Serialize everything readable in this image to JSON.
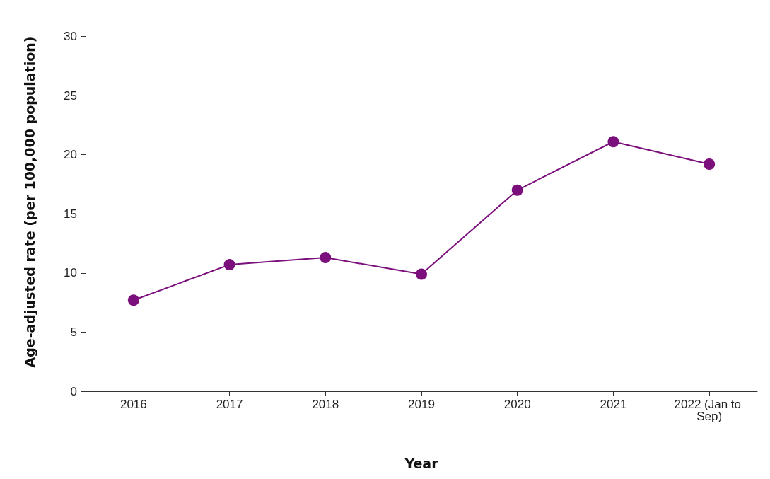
{
  "chart_data": {
    "type": "line",
    "xlabel": "Year",
    "ylabel": "Age-adjusted rate (per 100,000 population)",
    "categories": [
      "2016",
      "2017",
      "2018",
      "2019",
      "2020",
      "2021",
      "2022 (Jan to Sep)"
    ],
    "series": [
      {
        "color": "#7b0f7b",
        "values": [
          7.7,
          10.7,
          11.3,
          9.9,
          17.0,
          21.1,
          19.2
        ]
      }
    ],
    "ylim": [
      0,
      32
    ],
    "yticks": [
      0,
      5,
      10,
      15,
      20,
      25,
      30
    ],
    "grid": false,
    "marker": "circle",
    "line_style": "solid"
  }
}
